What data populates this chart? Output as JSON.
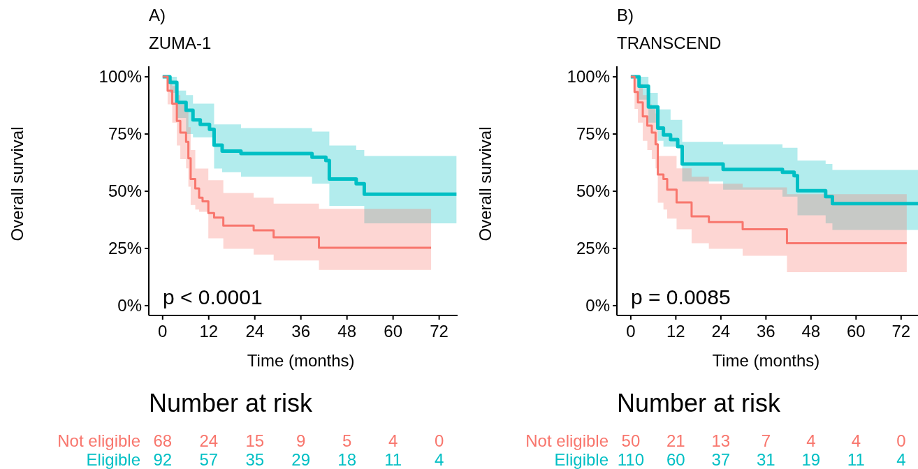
{
  "chart_data": [
    {
      "type": "step",
      "title": "A)",
      "subtitle": "ZUMA-1",
      "xlabel": "Time (months)",
      "ylabel": "Overall survival",
      "annotations": [
        "p < 0.0001"
      ],
      "xlim": [
        -3.6,
        76.8
      ],
      "ylim": [
        -4.3,
        104.6
      ],
      "xticks": [
        0,
        12,
        24,
        36,
        48,
        60,
        72
      ],
      "yticks": [
        {
          "value": 0,
          "label": "0%"
        },
        {
          "value": 25,
          "label": "25%"
        },
        {
          "value": 50,
          "label": "50%"
        },
        {
          "value": 75,
          "label": "75%"
        },
        {
          "value": 100,
          "label": "100%"
        }
      ],
      "grid": false,
      "series": [
        {
          "color": "#00bfc4",
          "x": [
            0,
            1.9,
            3.7,
            6.1,
            7.9,
            9.8,
            12.2,
            13.4,
            15.5,
            20.4,
            38.9,
            42.5,
            43.4,
            50.4,
            52.5,
            76.5
          ],
          "values": [
            100,
            97.6,
            88.8,
            85.4,
            81.2,
            79.2,
            77.1,
            70.1,
            67.5,
            66.5,
            64.9,
            63.4,
            55.3,
            53.3,
            48.7,
            48.7
          ],
          "upper": [
            100,
            100,
            94,
            92,
            88.3,
            88.3,
            88.3,
            79.2,
            79.2,
            77.6,
            76.1,
            76.1,
            70,
            68,
            65.4,
            65.4
          ],
          "lower": [
            100,
            93,
            82,
            75,
            73.6,
            73.6,
            73.6,
            59.9,
            58.3,
            56.3,
            53.3,
            53.3,
            43.6,
            43.6,
            36,
            36
          ]
        },
        {
          "color": "#f8766d",
          "x": [
            0,
            1.3,
            2.5,
            3.7,
            4.6,
            6.1,
            6.7,
            7.3,
            8.5,
            9.5,
            10.4,
            11.9,
            13.4,
            15.8,
            23.7,
            28.9,
            40.7,
            69.9
          ],
          "values": [
            100,
            93.9,
            88.3,
            80.7,
            75.6,
            71.6,
            64.4,
            55.3,
            51.2,
            47.2,
            45.6,
            40.5,
            38.5,
            35,
            32.9,
            29.9,
            25.3,
            25.3
          ],
          "upper": [
            100,
            99,
            96,
            92,
            88,
            85,
            78,
            68,
            59.9,
            59.9,
            59.9,
            54.8,
            54.8,
            49.2,
            47.2,
            44.6,
            42.3,
            42.3
          ],
          "lower": [
            100,
            88,
            80,
            70,
            64,
            60,
            52,
            44,
            42,
            41,
            41,
            29.4,
            29.4,
            24.8,
            22.3,
            19.7,
            15.6,
            15.6
          ]
        }
      ]
    },
    {
      "type": "step",
      "title": "B)",
      "subtitle": "TRANSCEND",
      "xlabel": "Time (months)",
      "ylabel": "Overall survival",
      "annotations": [
        "p = 0.0085"
      ],
      "xlim": [
        -3.7,
        76.5
      ],
      "ylim": [
        -4.3,
        104.6
      ],
      "xticks": [
        0,
        12,
        24,
        36,
        48,
        60,
        72
      ],
      "yticks": [
        {
          "value": 0,
          "label": "0%"
        },
        {
          "value": 25,
          "label": "25%"
        },
        {
          "value": 50,
          "label": "50%"
        },
        {
          "value": 75,
          "label": "75%"
        },
        {
          "value": 100,
          "label": "100%"
        }
      ],
      "grid": false,
      "series": [
        {
          "color": "#00bfc4",
          "x": [
            0,
            2.2,
            4.7,
            7.2,
            8.7,
            10.6,
            12.5,
            13.7,
            24.6,
            40.4,
            43.5,
            44.4,
            51.9,
            53.7,
            76.5
          ],
          "values": [
            100,
            95.9,
            86.8,
            77.6,
            74.6,
            72.6,
            69.5,
            61.9,
            59.5,
            58.3,
            56.8,
            50.2,
            47.6,
            44.6,
            44.6
          ],
          "upper": [
            100,
            100,
            93,
            85.8,
            85.8,
            81.2,
            81.2,
            71.6,
            70.5,
            69,
            69,
            63.4,
            61.9,
            59.3,
            59.3
          ],
          "lower": [
            100,
            90,
            80,
            72,
            69.5,
            69.5,
            69.5,
            54.3,
            50.7,
            47.6,
            47.6,
            39.5,
            36,
            33.1,
            33.1
          ]
        },
        {
          "color": "#f8766d",
          "x": [
            0,
            1.0,
            1.9,
            3.2,
            4.4,
            5.6,
            6.6,
            7.2,
            8.7,
            9.7,
            12.2,
            16.2,
            20.8,
            29.8,
            41.6,
            73.5
          ],
          "values": [
            100,
            93.4,
            88.8,
            82.7,
            78.7,
            75.6,
            70.5,
            57.3,
            55.3,
            50.7,
            45.1,
            39,
            36.5,
            33.4,
            27.3,
            27.3
          ],
          "upper": [
            100,
            100,
            97,
            92,
            88,
            86,
            84,
            65.4,
            65.4,
            65.4,
            60,
            56.3,
            53.3,
            51.7,
            48.7,
            48.7
          ],
          "lower": [
            100,
            86,
            80,
            72,
            68,
            64,
            60,
            45,
            42,
            38,
            33.4,
            27.3,
            24.8,
            21.8,
            14.6,
            14.6
          ]
        }
      ]
    },
    {
      "type": "other",
      "title": "Number at risk",
      "colors": [
        "#f8766d",
        "#00bfc4"
      ],
      "annotations": [
        "Not eligible",
        "68",
        "24",
        "15",
        "9",
        "5",
        "4",
        "0",
        "Eligible",
        "92",
        "57",
        "35",
        "29",
        "18",
        "11",
        "4"
      ]
    },
    {
      "type": "other",
      "title": "Number at risk",
      "colors": [
        "#f8766d",
        "#00bfc4"
      ],
      "annotations": [
        "Not eligible",
        "50",
        "21",
        "13",
        "7",
        "4",
        "4",
        "0",
        "Eligible",
        "110",
        "60",
        "37",
        "31",
        "19",
        "11",
        "4"
      ]
    }
  ]
}
